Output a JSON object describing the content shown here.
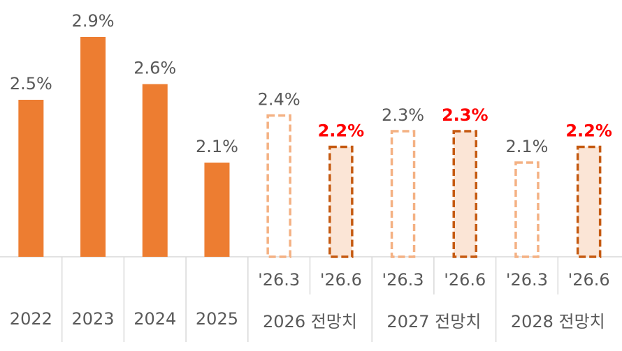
{
  "chart_data": {
    "type": "bar",
    "categories": [
      "2022",
      "2023",
      "2024",
      "2025"
    ],
    "values": [
      2.5,
      2.9,
      2.6,
      2.1
    ],
    "value_labels": [
      "2.5%",
      "2.9%",
      "2.6%",
      "2.1%"
    ],
    "color": "#ed7d31",
    "forecasts": [
      {
        "label": "2026 전망치",
        "categories": [
          "'26.3",
          "'26.6"
        ],
        "values": [
          2.4,
          2.2
        ],
        "value_labels": [
          "2.4%",
          "2.2%"
        ]
      },
      {
        "label": "2027 전망치",
        "categories": [
          "'26.3",
          "'26.6"
        ],
        "values": [
          2.3,
          2.3
        ],
        "value_labels": [
          "2.3%",
          "2.3%"
        ]
      },
      {
        "label": "2028 전망치",
        "categories": [
          "'26.3",
          "'26.6"
        ],
        "values": [
          2.1,
          2.2
        ],
        "value_labels": [
          "2.1%",
          "2.2%"
        ]
      }
    ],
    "forecast_styles": [
      {
        "stroke": "#f4b183",
        "fill": "none",
        "label_color": "#595959"
      },
      {
        "stroke": "#c55a11",
        "fill": "#fbe5d6",
        "label_color": "#ff0000"
      }
    ],
    "ylim": [
      1.5,
      3.1
    ]
  }
}
